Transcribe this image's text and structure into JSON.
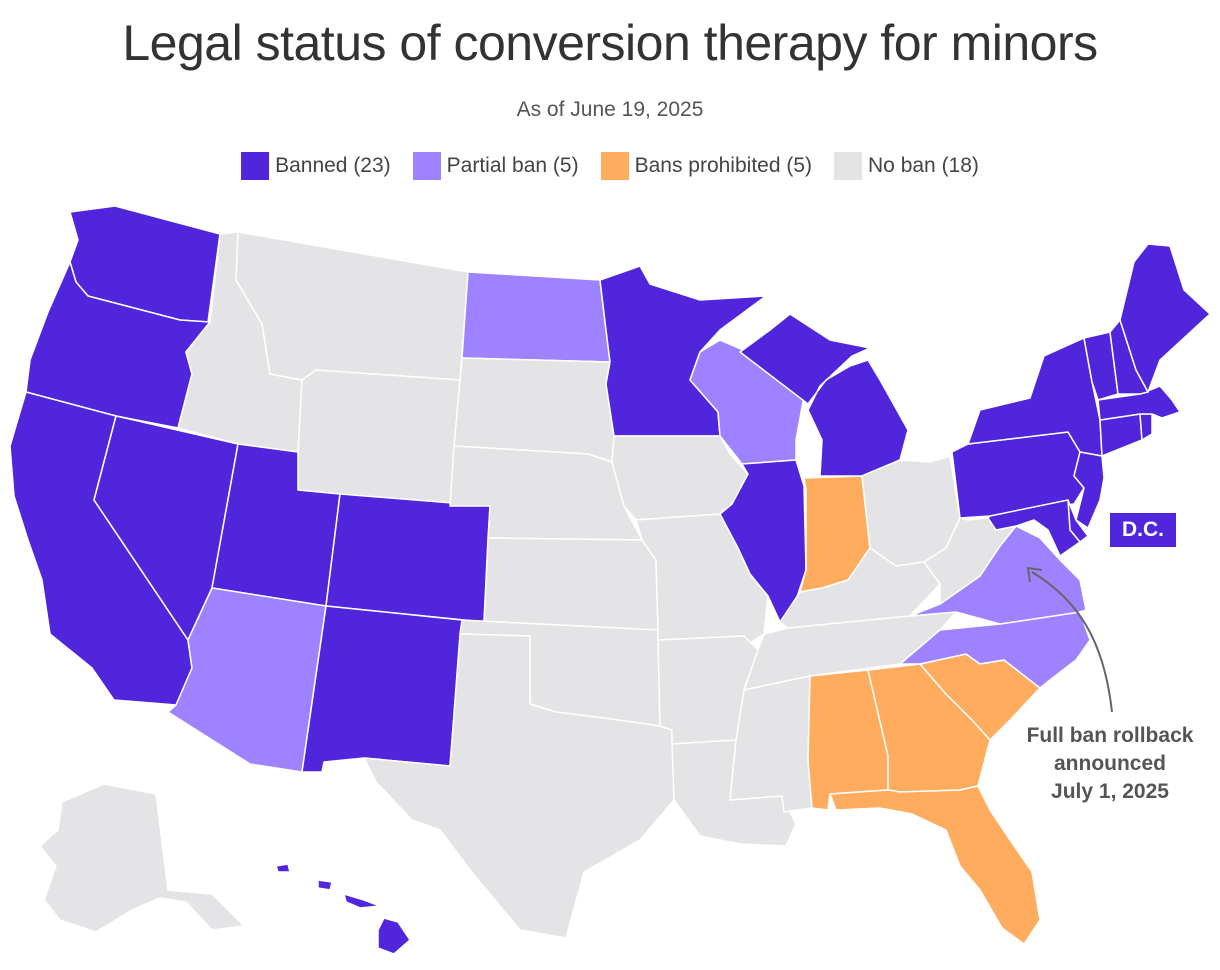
{
  "title": "Legal status of conversion therapy for minors",
  "subtitle": "As of June 19, 2025",
  "colors": {
    "banned": "#5025DB",
    "partial_ban": "#9E82FF",
    "bans_prohibited": "#FFAC5E",
    "no_ban": "#E4E4E6"
  },
  "legend": [
    {
      "key": "banned",
      "label": "Banned (23)"
    },
    {
      "key": "partial_ban",
      "label": "Partial ban (5)"
    },
    {
      "key": "bans_prohibited",
      "label": "Bans prohibited (5)"
    },
    {
      "key": "no_ban",
      "label": "No ban (18)"
    }
  ],
  "dc_label": "D.C.",
  "annotation": {
    "lines": [
      "Full ban rollback",
      "announced",
      "July 1, 2025"
    ]
  },
  "states": {
    "WA": "banned",
    "OR": "banned",
    "CA": "banned",
    "NV": "banned",
    "UT": "banned",
    "CO": "banned",
    "NM": "banned",
    "MN": "banned",
    "IL": "banned",
    "MI": "banned",
    "NY": "banned",
    "PA": "banned",
    "NJ": "banned",
    "MD": "banned",
    "DE": "banned",
    "CT": "banned",
    "RI": "banned",
    "MA": "banned",
    "VT": "banned",
    "NH": "banned",
    "ME": "banned",
    "HI": "banned",
    "DC": "banned",
    "ND": "partial_ban",
    "WI": "partial_ban",
    "AZ": "partial_ban",
    "VA": "partial_ban",
    "NC": "partial_ban",
    "IN": "bans_prohibited",
    "AL": "bans_prohibited",
    "GA": "bans_prohibited",
    "SC": "bans_prohibited",
    "FL": "bans_prohibited",
    "AK": "no_ban",
    "ID": "no_ban",
    "MT": "no_ban",
    "WY": "no_ban",
    "SD": "no_ban",
    "NE": "no_ban",
    "KS": "no_ban",
    "OK": "no_ban",
    "TX": "no_ban",
    "IA": "no_ban",
    "MO": "no_ban",
    "AR": "no_ban",
    "LA": "no_ban",
    "MS": "no_ban",
    "TN": "no_ban",
    "KY": "no_ban",
    "OH": "no_ban",
    "WV": "no_ban"
  }
}
